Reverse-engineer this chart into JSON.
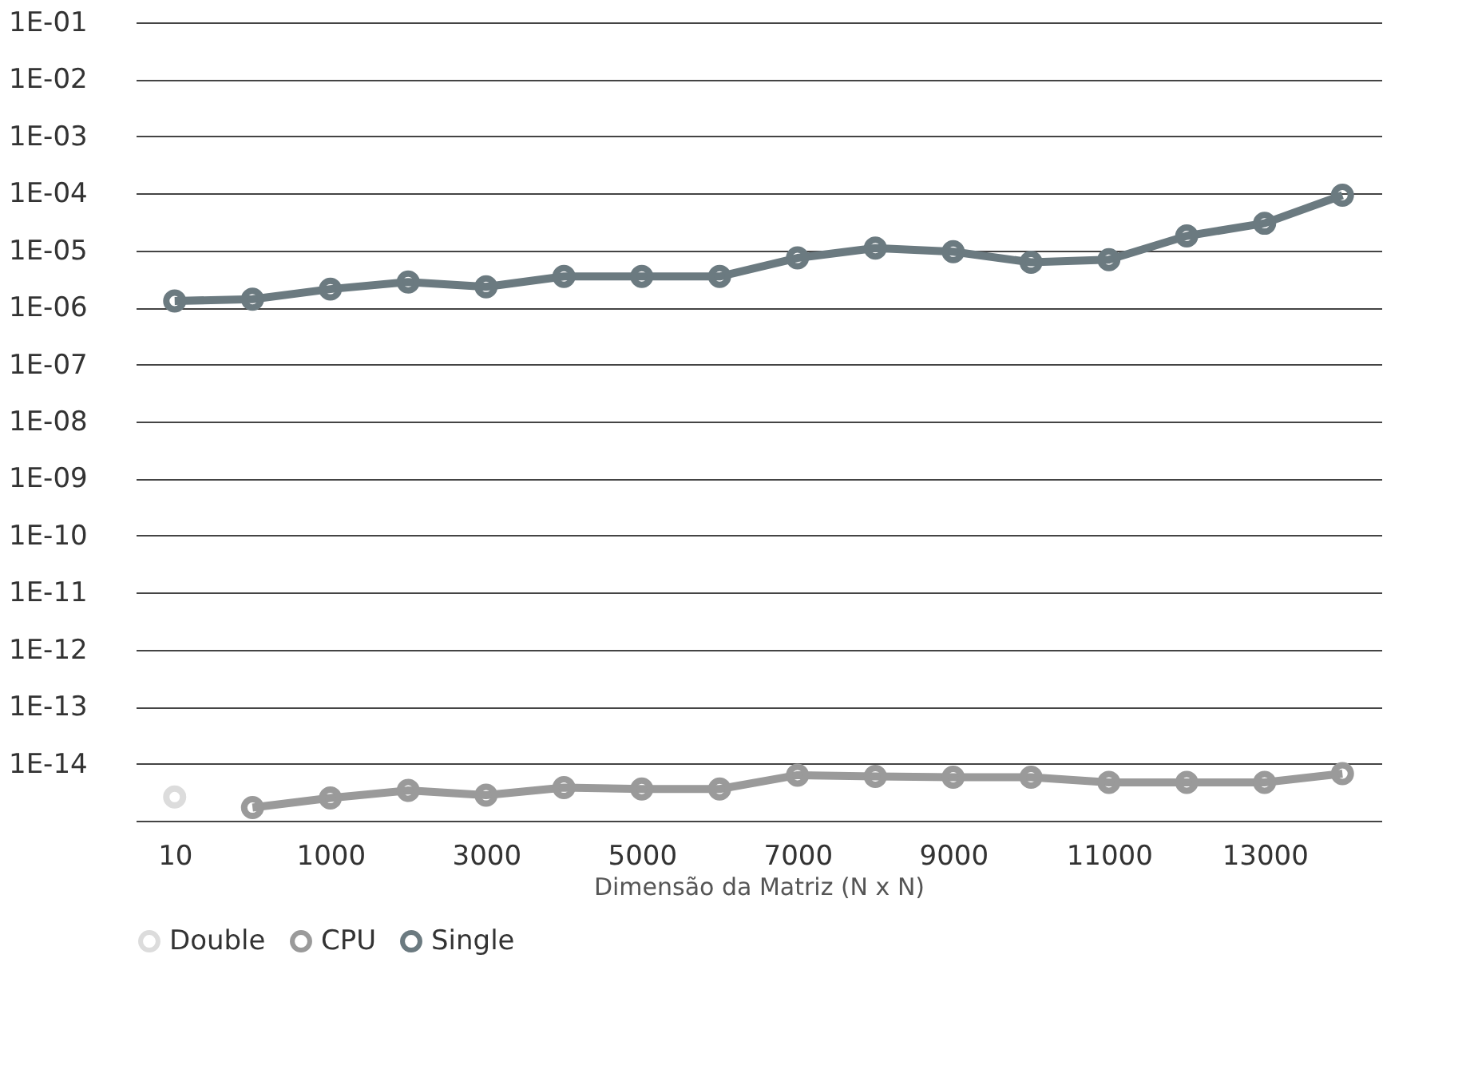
{
  "chart_data": {
    "type": "line",
    "xlabel": "Dimensão da Matriz (N x N)",
    "categories": [
      "10",
      null,
      "1000",
      null,
      "3000",
      null,
      "5000",
      null,
      "7000",
      null,
      "9000",
      null,
      "11000",
      null,
      "13000",
      null
    ],
    "series": [
      {
        "name": "Double",
        "color": "#dcdcdc",
        "values": [
          2.6e-15,
          null,
          null,
          null,
          null,
          null,
          null,
          null,
          null,
          null,
          null,
          null,
          null,
          null,
          null,
          null
        ]
      },
      {
        "name": "CPU",
        "color": "#9a9a9a",
        "values": [
          null,
          1.7e-15,
          2.5e-15,
          3.4e-15,
          2.8e-15,
          3.8e-15,
          3.6e-15,
          3.6e-15,
          6.3e-15,
          6e-15,
          5.8e-15,
          5.8e-15,
          4.7e-15,
          4.7e-15,
          4.7e-15,
          6.7e-15
        ]
      },
      {
        "name": "Single",
        "color": "#6b7a80",
        "values": [
          1.3e-06,
          1.4e-06,
          2.1e-06,
          2.8e-06,
          2.3e-06,
          3.5e-06,
          3.5e-06,
          3.5e-06,
          7.4e-06,
          1.1e-05,
          9.5e-06,
          6.2e-06,
          6.9e-06,
          1.8e-05,
          3e-05,
          9.3e-05
        ]
      }
    ],
    "log": "y",
    "ylim": [
      1e-15,
      0.1
    ],
    "yticks": [
      {
        "value": 1e-15,
        "label": null
      },
      {
        "value": 1e-14,
        "label": "1E-14"
      },
      {
        "value": 1e-13,
        "label": "1E-13"
      },
      {
        "value": 1e-12,
        "label": "1E-12"
      },
      {
        "value": 1e-11,
        "label": "1E-11"
      },
      {
        "value": 1e-10,
        "label": "1E-10"
      },
      {
        "value": 1e-09,
        "label": "1E-09"
      },
      {
        "value": 1e-08,
        "label": "1E-08"
      },
      {
        "value": 1e-07,
        "label": "1E-07"
      },
      {
        "value": 1e-06,
        "label": "1E-06"
      },
      {
        "value": 1e-05,
        "label": "1E-05"
      },
      {
        "value": 0.0001,
        "label": "1E-04"
      },
      {
        "value": 0.001,
        "label": "1E-03"
      },
      {
        "value": 0.01,
        "label": "1E-02"
      },
      {
        "value": 0.1,
        "label": "1E-01"
      }
    ],
    "grid": "y",
    "legend": "bottom",
    "marker": "circle",
    "line_style": "solid"
  }
}
